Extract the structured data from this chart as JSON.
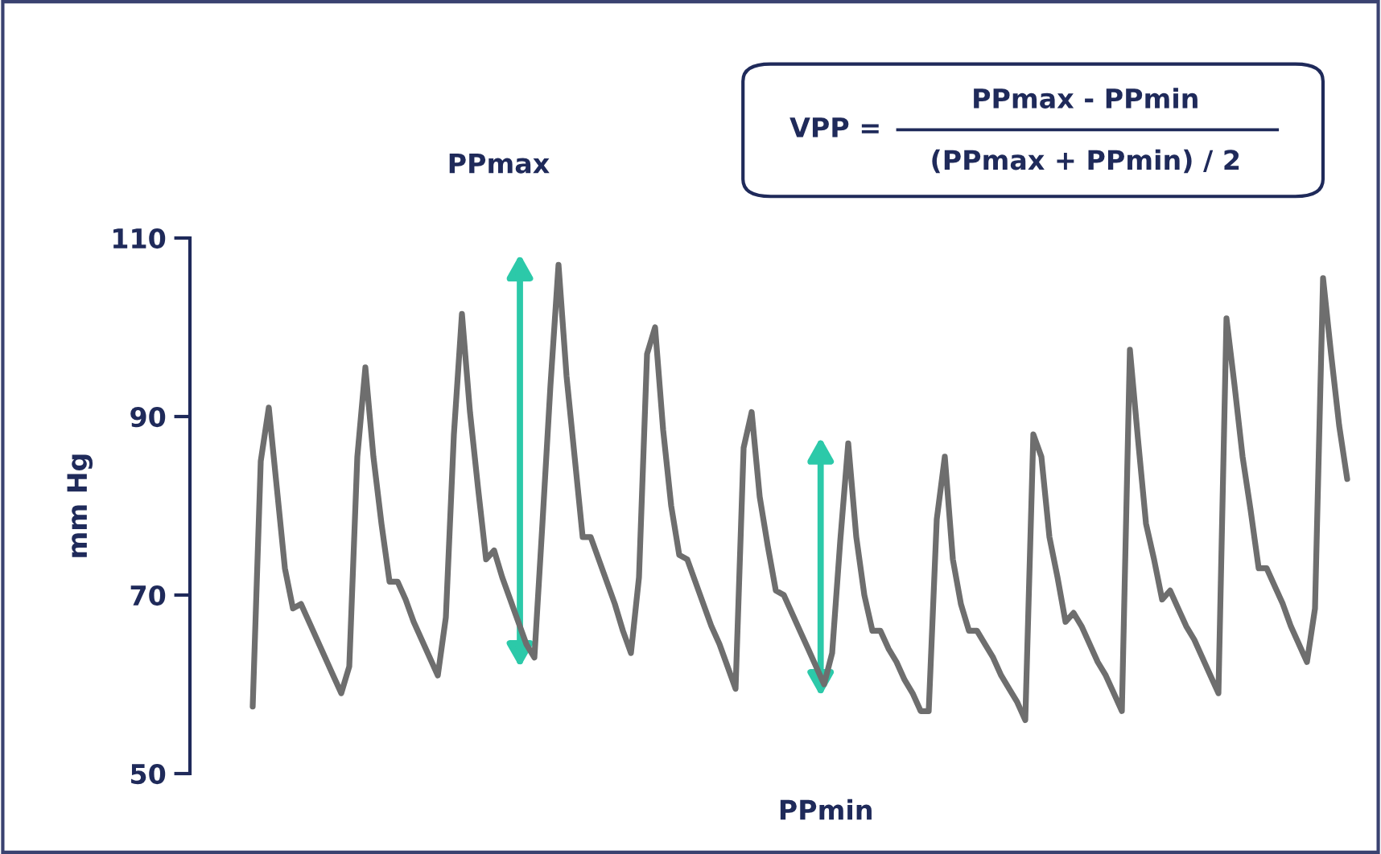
{
  "chart_data": {
    "type": "line",
    "ylabel": "mm Hg",
    "categories": [
      null,
      null,
      null,
      null,
      null,
      null,
      null,
      null,
      null,
      null,
      null,
      null,
      null,
      null,
      null,
      null,
      null,
      null,
      null,
      null,
      null,
      null,
      null,
      null,
      null,
      null,
      null,
      null,
      null,
      null,
      null,
      null,
      null,
      null,
      null,
      null,
      null,
      null,
      null,
      null,
      null,
      null,
      null,
      null,
      null,
      null,
      null,
      null,
      null,
      null,
      null,
      null,
      null,
      null,
      null,
      null,
      null,
      null,
      null,
      null,
      null,
      null,
      null,
      null,
      null,
      null,
      null,
      null,
      null,
      null,
      null,
      null,
      null,
      null,
      null,
      null,
      null,
      null,
      null,
      null,
      null,
      null,
      null,
      null,
      null,
      null,
      null,
      null,
      null,
      null,
      null,
      null,
      null,
      null,
      null,
      null,
      null,
      null,
      null,
      null,
      null,
      null,
      null,
      null,
      null,
      null,
      null,
      null,
      null,
      null,
      null,
      null,
      null,
      null,
      null,
      null,
      null,
      null,
      null,
      null,
      null,
      null,
      null,
      null,
      null,
      null,
      null,
      null,
      null,
      null,
      null,
      null,
      null,
      null,
      null,
      null,
      null
    ],
    "ylim": [
      50,
      110
    ],
    "yticks": [
      50,
      70,
      90,
      110
    ],
    "tick_labels": "y",
    "grid": false,
    "legend": false,
    "series": [
      {
        "color": "#6e6e6e",
        "values": [
          57.5,
          85,
          91,
          82,
          73,
          68.5,
          69,
          67,
          65,
          63,
          61,
          59,
          62,
          85.5,
          95.5,
          85.5,
          78,
          71.5,
          71.5,
          69.5,
          67,
          65,
          63,
          61,
          67.5,
          88,
          101.5,
          90.5,
          82,
          74,
          75,
          72,
          69.5,
          67,
          64.5,
          63,
          78,
          93.5,
          107,
          94.5,
          85.5,
          76.5,
          76.5,
          74,
          71.5,
          69,
          66,
          63.5,
          72,
          97,
          100,
          88.5,
          80,
          74.5,
          74,
          71.5,
          69,
          66.5,
          64.5,
          62,
          59.5,
          86.5,
          90.5,
          81,
          75.5,
          70.5,
          70,
          68,
          66,
          64,
          62,
          60,
          63.5,
          76,
          87,
          76.5,
          70,
          66,
          66,
          64,
          62.5,
          60.5,
          59,
          57,
          57,
          78.5,
          85.5,
          74,
          69,
          66,
          66,
          64.5,
          63,
          61,
          59.5,
          58,
          56,
          88,
          85.5,
          76.5,
          72,
          67,
          68,
          66.5,
          64.5,
          62.5,
          61,
          59,
          57,
          97.5,
          87.5,
          78,
          74,
          69.5,
          70.5,
          68.5,
          66.5,
          65,
          63,
          61,
          59,
          101,
          93.5,
          85.5,
          79.5,
          73,
          73,
          71,
          69,
          66.5,
          64.5,
          62.5,
          68.5,
          105.5,
          97,
          89,
          83
        ]
      }
    ],
    "annotations": [
      "PPmax",
      "PPmin",
      "VPP =",
      "PPmax - PPmin",
      "(PPmax + PPmin) / 2"
    ]
  }
}
